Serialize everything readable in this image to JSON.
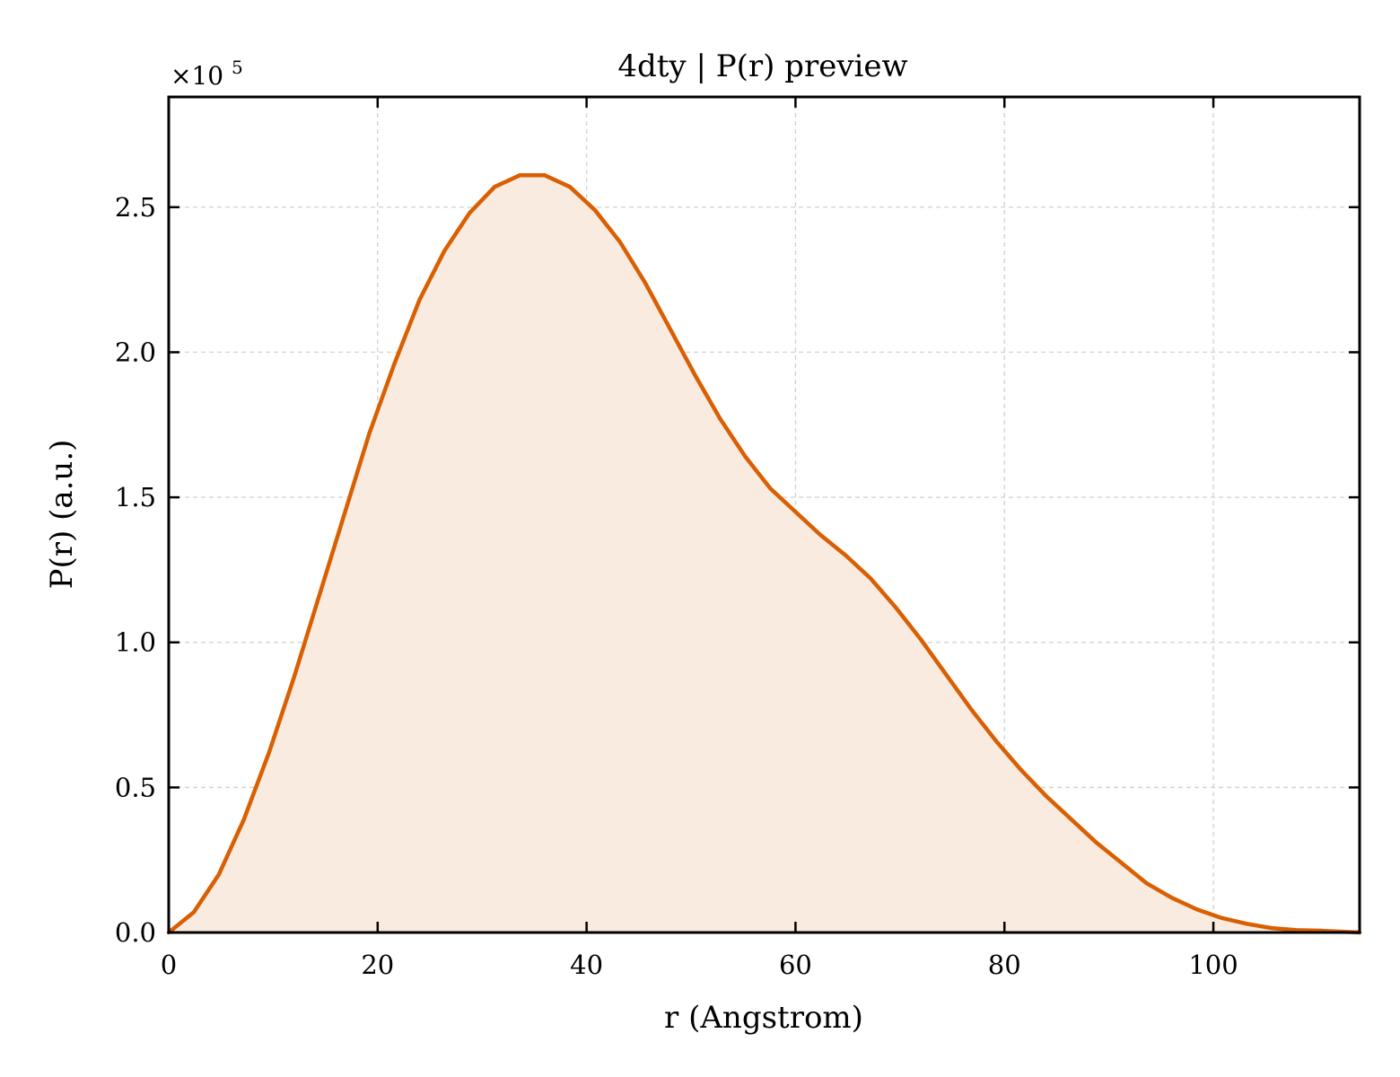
{
  "chart_data": {
    "type": "area",
    "title": "4dty | P(r) preview",
    "xlabel": "r (Angstrom)",
    "ylabel": "P(r) (a.u.)",
    "y_multiplier_base": "×10",
    "y_multiplier_exponent": "5",
    "xlim": [
      0,
      114
    ],
    "ylim": [
      0,
      2.88
    ],
    "x_ticks": [
      0,
      20,
      40,
      60,
      80,
      100
    ],
    "x_tick_labels": [
      "0",
      "20",
      "40",
      "60",
      "80",
      "100"
    ],
    "y_ticks": [
      0,
      0.5,
      1.0,
      1.5,
      2.0,
      2.5
    ],
    "y_tick_labels": [
      "0.0",
      "0.5",
      "1.0",
      "1.5",
      "2.0",
      "2.5"
    ],
    "grid": true,
    "legend": "none",
    "colors": {
      "line": "#d95f02",
      "fill": "#f9ebe0",
      "grid": "#d4d4d4",
      "axes": "#000000"
    },
    "series": [
      {
        "x": [
          0,
          2.4,
          4.8,
          7.2,
          9.6,
          12.0,
          14.4,
          16.8,
          19.2,
          21.6,
          24.0,
          26.4,
          28.8,
          31.2,
          33.6,
          36.0,
          38.4,
          40.8,
          43.2,
          45.6,
          48.0,
          50.4,
          52.8,
          55.2,
          57.6,
          60.0,
          62.4,
          64.8,
          67.2,
          69.6,
          72.0,
          74.4,
          76.8,
          79.2,
          81.6,
          84.0,
          86.4,
          88.8,
          91.2,
          93.6,
          96.0,
          98.4,
          100.8,
          103.2,
          105.6,
          108.0,
          110.4,
          112.8,
          114.0
        ],
        "y": [
          0,
          0.07,
          0.2,
          0.39,
          0.62,
          0.88,
          1.16,
          1.44,
          1.72,
          1.96,
          2.18,
          2.35,
          2.48,
          2.57,
          2.61,
          2.61,
          2.57,
          2.49,
          2.38,
          2.24,
          2.08,
          1.92,
          1.77,
          1.64,
          1.53,
          1.45,
          1.37,
          1.3,
          1.22,
          1.12,
          1.01,
          0.89,
          0.77,
          0.66,
          0.56,
          0.47,
          0.39,
          0.31,
          0.24,
          0.17,
          0.12,
          0.08,
          0.05,
          0.03,
          0.015,
          0.008,
          0.006,
          0.002,
          0
        ]
      }
    ]
  }
}
